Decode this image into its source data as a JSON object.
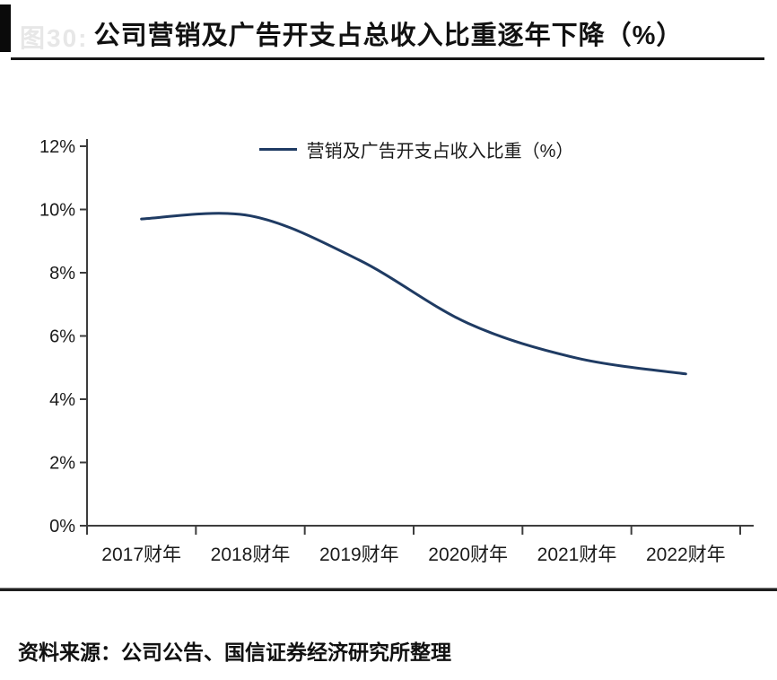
{
  "page": {
    "ghost_label": "图30:",
    "title": "公司营销及广告开支占总收入比重逐年下降（%）",
    "source": "资料来源：公司公告、国信证券经济研究所整理"
  },
  "chart_data": {
    "type": "line",
    "title": "公司营销及广告开支占总收入比重逐年下降（%）",
    "legend": "营销及广告开支占收入比重（%）",
    "legend_position": "top-center",
    "categories": [
      "2017财年",
      "2018财年",
      "2019财年",
      "2020财年",
      "2021财年",
      "2022财年"
    ],
    "series": [
      {
        "name": "营销及广告开支占收入比重（%）",
        "values": [
          9.7,
          9.8,
          8.4,
          6.4,
          5.3,
          4.8
        ]
      }
    ],
    "xlabel": "",
    "ylabel": "",
    "ylim": [
      0,
      12
    ],
    "ytick_step": 2,
    "ytick_labels": [
      "0%",
      "2%",
      "4%",
      "6%",
      "8%",
      "10%",
      "12%"
    ],
    "grid": false,
    "smooth": true,
    "line_color": "#1f3b63",
    "axis_color": "#3d3d3d",
    "tick_label_color": "#1a1a1a"
  }
}
